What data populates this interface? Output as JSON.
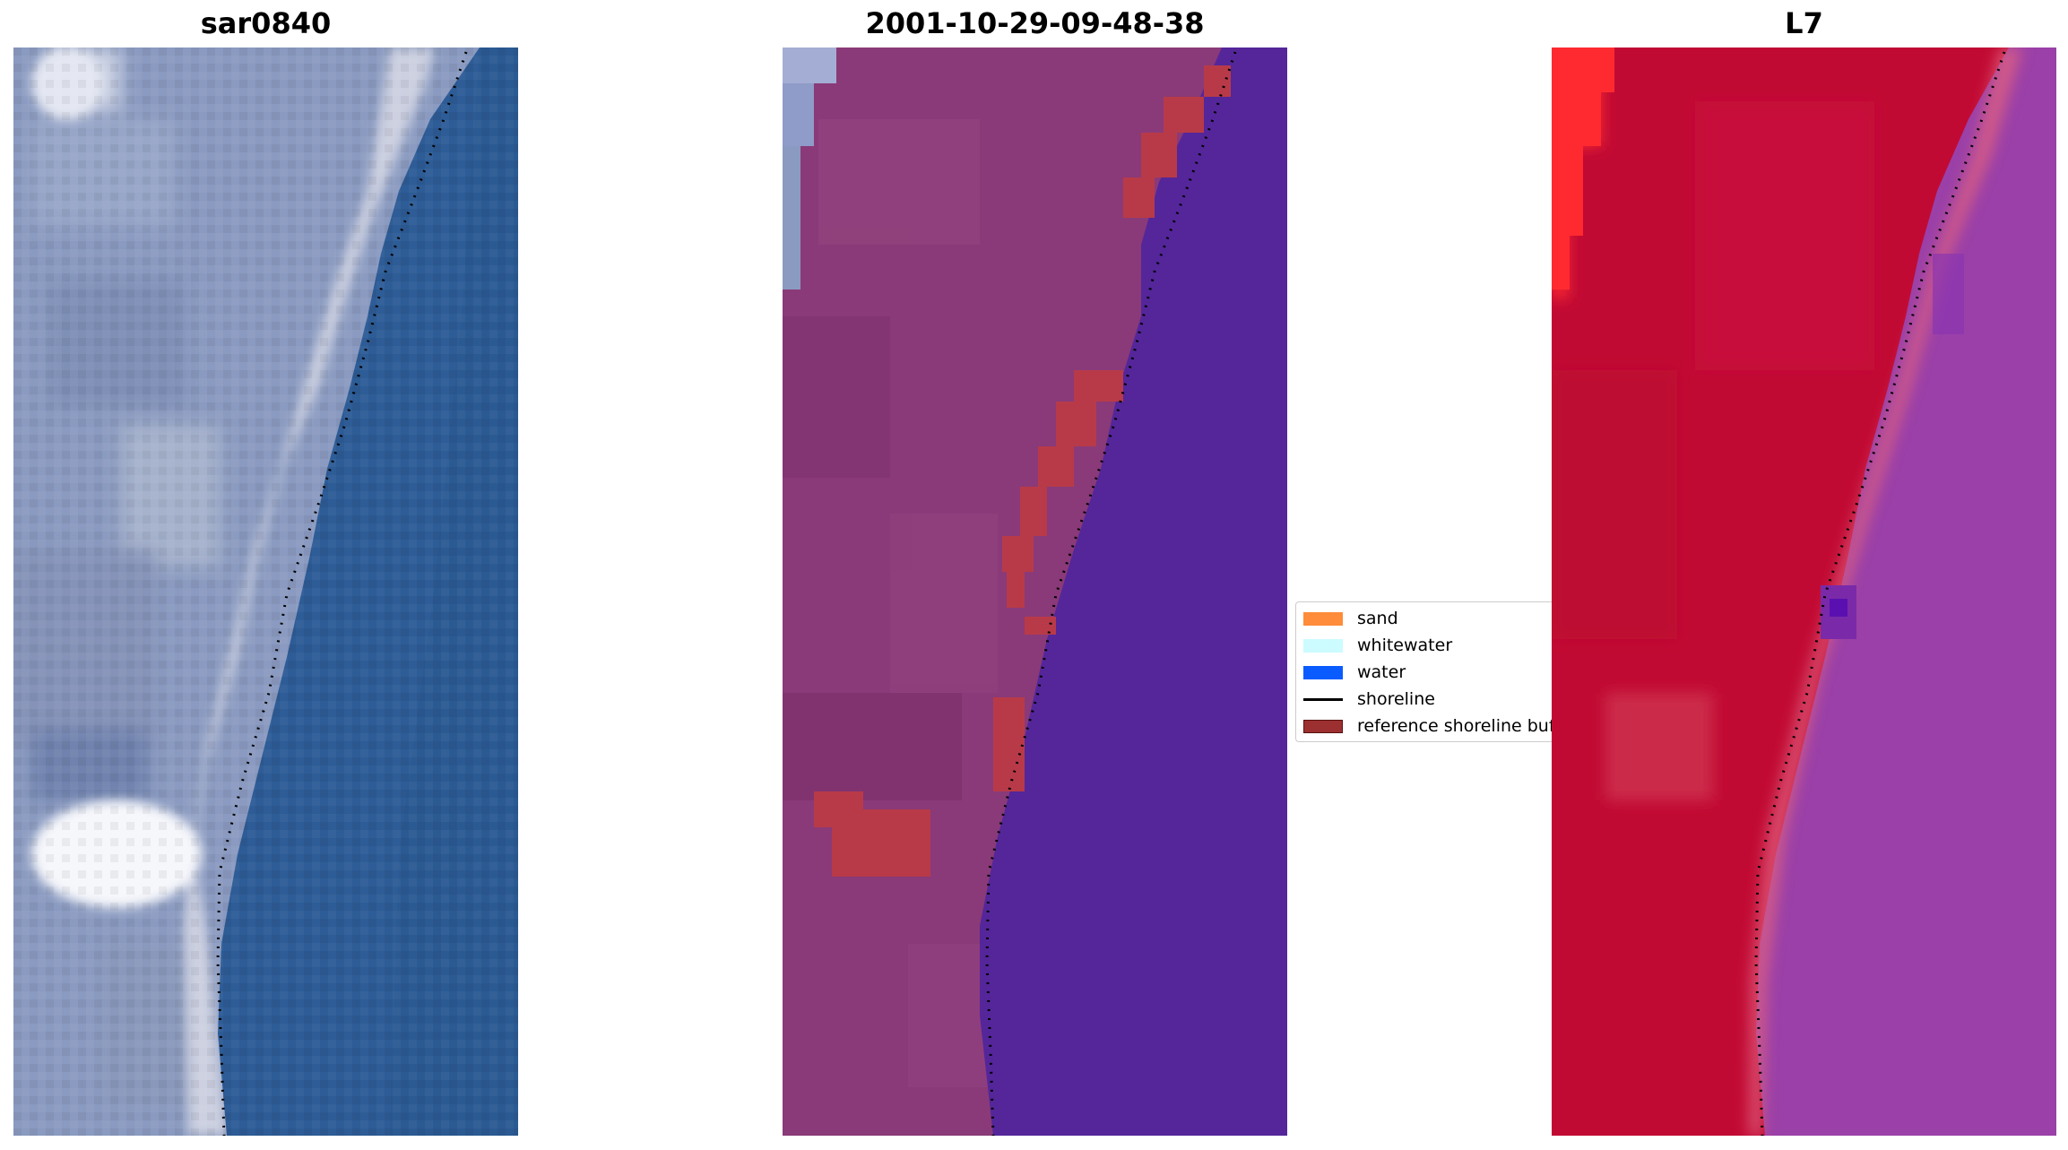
{
  "panels": [
    {
      "title": "sar0840"
    },
    {
      "title": "2001-10-29-09-48-38"
    },
    {
      "title": "L7"
    }
  ],
  "legend": {
    "items": [
      {
        "label": "sand",
        "color": "#ff8c3a"
      },
      {
        "label": "whitewater",
        "color": "#ccfcff"
      },
      {
        "label": "water",
        "color": "#0a5cff"
      },
      {
        "label": "shoreline",
        "color": "#000000"
      },
      {
        "label": "reference shoreline buffer",
        "color": "#9c3030"
      }
    ]
  },
  "colors": {
    "rgb_water": "#2d5c96",
    "rgb_land": "#8a9ac0",
    "rgb_beach": "#d8dce8",
    "class_land": "#8a3a78",
    "class_water": "#54269a",
    "class_buffer": "#b83a48",
    "l7_land": "#c10a33",
    "l7_land_bright": "#ff2a30",
    "l7_sea": "#9a40a8"
  }
}
